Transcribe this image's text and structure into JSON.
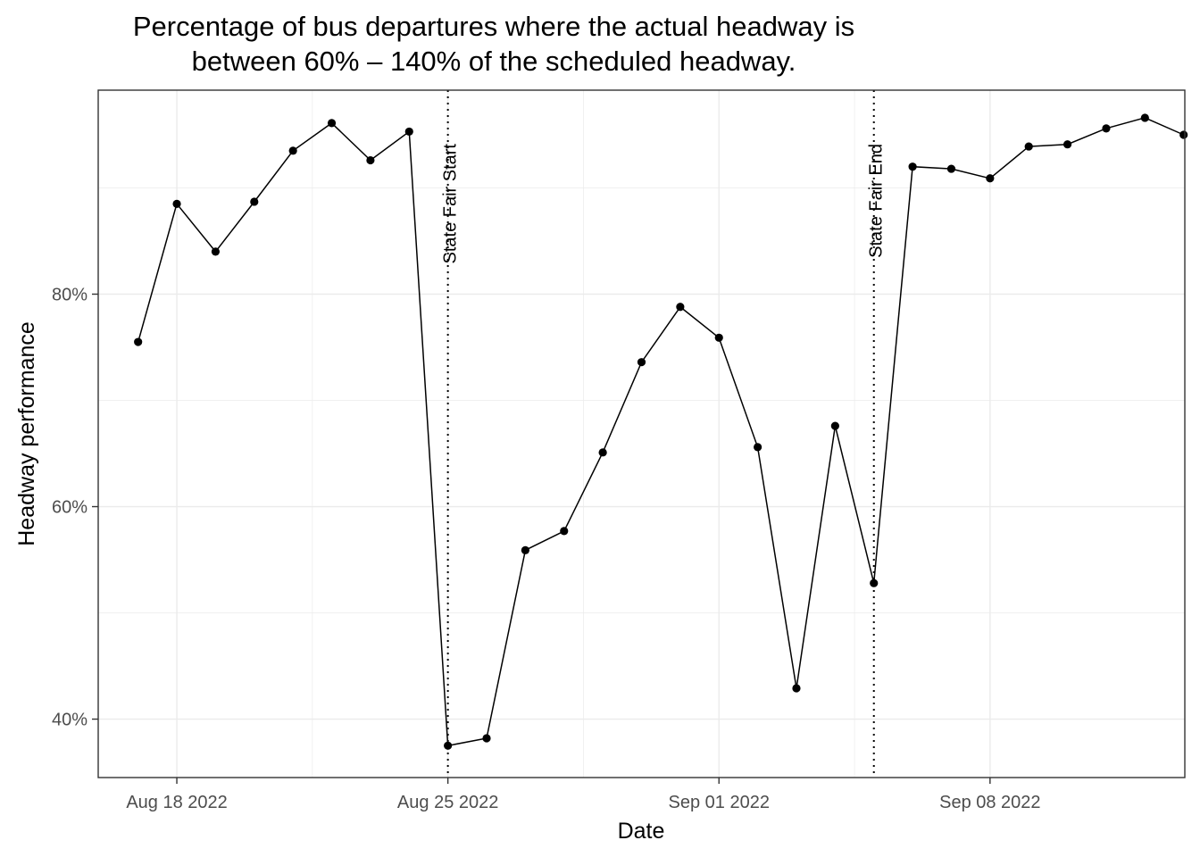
{
  "chart_data": {
    "type": "line",
    "title_line1": "Percentage of bus departures where the actual headway is",
    "title_line2": "between 60% – 140% of the scheduled headway.",
    "xlabel": "Date",
    "ylabel": "Headway performance",
    "x_ticks": [
      {
        "date": "2022-08-18",
        "label": "Aug 18 2022"
      },
      {
        "date": "2022-08-25",
        "label": "Aug 25 2022"
      },
      {
        "date": "2022-09-01",
        "label": "Sep 01 2022"
      },
      {
        "date": "2022-09-08",
        "label": "Sep 08 2022"
      }
    ],
    "y_ticks": [
      {
        "value": 0.4,
        "label": "40%"
      },
      {
        "value": 0.6,
        "label": "60%"
      },
      {
        "value": 0.8,
        "label": "80%"
      }
    ],
    "xlim": [
      "2022-08-15",
      "2022-09-13"
    ],
    "ylim": [
      0.345,
      0.992
    ],
    "grid": true,
    "annotations": [
      {
        "date": "2022-08-25",
        "label": "State Fair Start",
        "linestyle": "dotted"
      },
      {
        "date": "2022-09-05",
        "label": "State Fair End",
        "linestyle": "dotted"
      }
    ],
    "points": [
      {
        "x": "2022-08-17",
        "y": 0.755
      },
      {
        "x": "2022-08-18",
        "y": 0.885
      },
      {
        "x": "2022-08-19",
        "y": 0.84
      },
      {
        "x": "2022-08-20",
        "y": 0.887
      },
      {
        "x": "2022-08-21",
        "y": 0.935
      },
      {
        "x": "2022-08-22",
        "y": 0.961
      },
      {
        "x": "2022-08-23",
        "y": 0.926
      },
      {
        "x": "2022-08-24",
        "y": 0.953
      },
      {
        "x": "2022-08-25",
        "y": 0.375
      },
      {
        "x": "2022-08-26",
        "y": 0.382
      },
      {
        "x": "2022-08-27",
        "y": 0.559
      },
      {
        "x": "2022-08-28",
        "y": 0.577
      },
      {
        "x": "2022-08-29",
        "y": 0.651
      },
      {
        "x": "2022-08-30",
        "y": 0.736
      },
      {
        "x": "2022-08-31",
        "y": 0.788
      },
      {
        "x": "2022-09-01",
        "y": 0.759
      },
      {
        "x": "2022-09-02",
        "y": 0.656
      },
      {
        "x": "2022-09-03",
        "y": 0.429
      },
      {
        "x": "2022-09-04",
        "y": 0.676
      },
      {
        "x": "2022-09-05",
        "y": 0.528
      },
      {
        "x": "2022-09-06",
        "y": 0.92
      },
      {
        "x": "2022-09-07",
        "y": 0.918
      },
      {
        "x": "2022-09-08",
        "y": 0.909
      },
      {
        "x": "2022-09-09",
        "y": 0.939
      },
      {
        "x": "2022-09-10",
        "y": 0.941
      },
      {
        "x": "2022-09-11",
        "y": 0.956
      },
      {
        "x": "2022-09-12",
        "y": 0.966
      },
      {
        "x": "2022-09-13",
        "y": 0.95
      }
    ],
    "line_color": "#000000",
    "grid_color": "#ebebeb"
  }
}
